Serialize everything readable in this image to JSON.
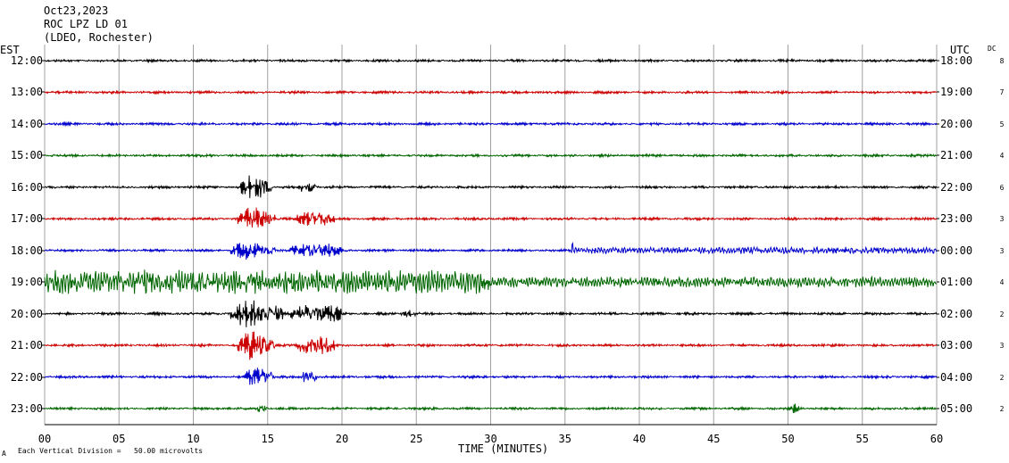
{
  "header": {
    "date": "Oct23,2023",
    "station": "ROC LPZ LD 01",
    "network": "(LDEO, Rochester)"
  },
  "left_axis_label": "EST",
  "right_axis_label": "UTC",
  "dc_label": "DC",
  "footer_note": "Each Vertical Division =   50.00 microvolts",
  "footer_mark": "A",
  "chart_data": {
    "type": "line",
    "xlabel": "TIME (MINUTES)",
    "xlim": [
      0,
      60
    ],
    "x_ticks": [
      0,
      5,
      10,
      15,
      20,
      25,
      30,
      35,
      40,
      45,
      50,
      55,
      60
    ],
    "x_tick_labels": [
      "00",
      "05",
      "10",
      "15",
      "20",
      "25",
      "30",
      "35",
      "40",
      "45",
      "50",
      "55",
      "60"
    ],
    "grid": true,
    "rows": [
      {
        "est": "12:00",
        "utc": "18:00",
        "dc": "8",
        "color": "#000000",
        "events": []
      },
      {
        "est": "13:00",
        "utc": "19:00",
        "dc": "7",
        "color": "#cc0000",
        "events": []
      },
      {
        "est": "14:00",
        "utc": "20:00",
        "dc": "5",
        "color": "#0000cc",
        "events": []
      },
      {
        "est": "15:00",
        "utc": "21:00",
        "dc": "4",
        "color": "#006600",
        "events": []
      },
      {
        "est": "16:00",
        "utc": "22:00",
        "dc": "6",
        "color": "#000000",
        "events": [
          {
            "start": 13.2,
            "end": 15.3,
            "amp": 16
          },
          {
            "start": 17.1,
            "end": 18.3,
            "amp": 8
          }
        ]
      },
      {
        "est": "17:00",
        "utc": "23:00",
        "dc": "3",
        "color": "#cc0000",
        "events": [
          {
            "start": 13.0,
            "end": 15.5,
            "amp": 14
          },
          {
            "start": 17.0,
            "end": 19.5,
            "amp": 12
          }
        ]
      },
      {
        "est": "18:00",
        "utc": "00:00",
        "dc": "3",
        "color": "#0000cc",
        "events": [
          {
            "start": 12.5,
            "end": 15.5,
            "amp": 12
          },
          {
            "start": 16.5,
            "end": 20.0,
            "amp": 10
          },
          {
            "start": 35.3,
            "end": 35.6,
            "amp": 10
          },
          {
            "start": 35.5,
            "end": 60,
            "amp": 4
          }
        ]
      },
      {
        "est": "19:00",
        "utc": "01:00",
        "dc": "4",
        "color": "#006600",
        "events": [
          {
            "start": 0,
            "end": 30,
            "amp": 14
          },
          {
            "start": 30,
            "end": 60,
            "amp": 6
          }
        ]
      },
      {
        "est": "20:00",
        "utc": "02:00",
        "dc": "2",
        "color": "#000000",
        "events": [
          {
            "start": 12.5,
            "end": 16.0,
            "amp": 18
          },
          {
            "start": 16.5,
            "end": 20.0,
            "amp": 14
          },
          {
            "start": 24.0,
            "end": 25.0,
            "amp": 6
          }
        ]
      },
      {
        "est": "21:00",
        "utc": "03:00",
        "dc": "3",
        "color": "#cc0000",
        "events": [
          {
            "start": 13.0,
            "end": 15.5,
            "amp": 18
          },
          {
            "start": 17.0,
            "end": 19.5,
            "amp": 14
          }
        ]
      },
      {
        "est": "22:00",
        "utc": "04:00",
        "dc": "2",
        "color": "#0000cc",
        "events": [
          {
            "start": 13.5,
            "end": 15.5,
            "amp": 14
          },
          {
            "start": 17.3,
            "end": 18.3,
            "amp": 12
          }
        ]
      },
      {
        "est": "23:00",
        "utc": "05:00",
        "dc": "2",
        "color": "#006600",
        "events": [
          {
            "start": 14.2,
            "end": 15.0,
            "amp": 6
          },
          {
            "start": 50.2,
            "end": 50.9,
            "amp": 7
          }
        ]
      }
    ]
  }
}
